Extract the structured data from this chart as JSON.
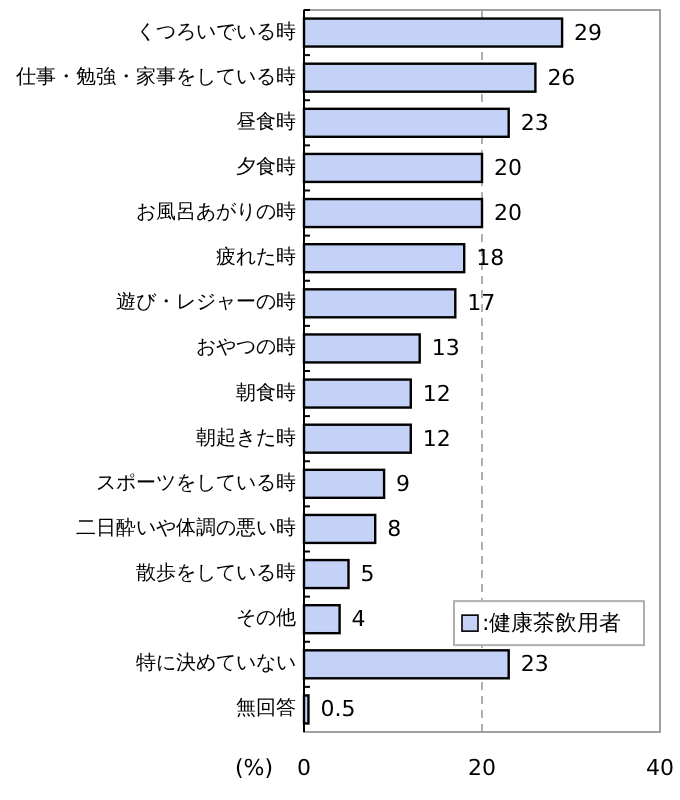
{
  "chart_data": {
    "type": "bar",
    "orientation": "horizontal",
    "categories": [
      "くつろいでいる時",
      "仕事・勉強・家事をしている時",
      "昼食時",
      "夕食時",
      "お風呂あがりの時",
      "疲れた時",
      "遊び・レジャーの時",
      "おやつの時",
      "朝食時",
      "朝起きた時",
      "スポーツをしている時",
      "二日酔いや体調の悪い時",
      "散歩をしている時",
      "その他",
      "特に決めていない",
      "無回答"
    ],
    "series": [
      {
        "name": ":健康茶飲用者",
        "color": "#c5d2f7",
        "values": [
          29,
          26,
          23,
          20,
          20,
          18,
          17,
          13,
          12,
          12,
          9,
          8,
          5,
          4,
          23,
          0.5
        ]
      }
    ],
    "xlim": [
      0,
      40
    ],
    "xticks": [
      0,
      20,
      40
    ],
    "xlabel": "(%)",
    "grid": "x",
    "data_labels": true,
    "legend": "bottom right"
  }
}
